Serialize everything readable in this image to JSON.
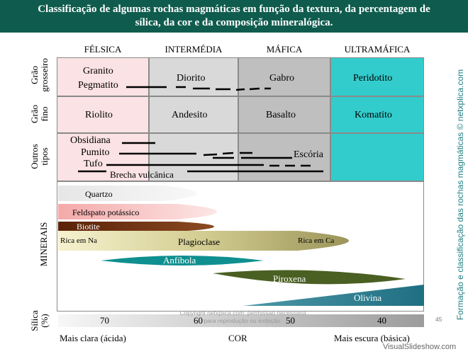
{
  "title": {
    "line1": "Classificação de algumas rochas magmáticas em função da textura, da percentagem de",
    "line2": "sílica, da cor e da composição mineralógica."
  },
  "side_text": "Formação e classificação das rochas magmáticas © netxplica.com",
  "columns": [
    "FÉLSICA",
    "INTERMÉDIA",
    "MÁFICA",
    "ULTRAMÁFICA"
  ],
  "row_labels": {
    "coarse": [
      "Grão",
      "grosseiro"
    ],
    "fine": [
      "Grão",
      "fino"
    ],
    "others": [
      "Outros",
      "tipos"
    ],
    "minerals": "MINERAIS",
    "silica": [
      "Sílica",
      "(%)"
    ]
  },
  "rocks": {
    "granito": "Granito",
    "pegmatito": "Pegmatito",
    "diorito": "Diorito",
    "gabro": "Gabro",
    "peridotito": "Peridotito",
    "riolito": "Riolito",
    "andesito": "Andesito",
    "basalto": "Basalto",
    "komatito": "Komatito",
    "obsidiana": "Obsidiana",
    "pumito": "Pumito",
    "tufo": "Tufo",
    "escoria": "Escória",
    "brecha": "Brecha vulcânica"
  },
  "minerals": {
    "quartzo": "Quartzo",
    "feldspato": "Feldspato potássico",
    "biotite": "Biotite",
    "plagioclase": "Plagioclase",
    "rica_na": "Rica em Na",
    "rica_ca": "Rica em Ca",
    "anfibola": "Anfíbola",
    "piroxena": "Piroxena",
    "olivina": "Olivina"
  },
  "silica_scale": [
    "70",
    "60",
    "50",
    "40"
  ],
  "color_axis": {
    "left": "Mais clara (ácida)",
    "center": "COR",
    "right": "Mais escura (básica)"
  },
  "copyright": "Copyright netxplica.com: permissão necessária para reprodução ou exibição.",
  "page_number": "45",
  "watermark": "VisualSlideshow.com",
  "colors": {
    "title_bg": "#0f5c4e",
    "felsic": "#fbe2e4",
    "intermediate": "#d9d9d9",
    "mafic": "#bfbfbf",
    "ultramafic": "#33cccc",
    "quartzo": "#eeeeee",
    "feldspato": "#f8c4c4",
    "biotite": "#6b2d0e",
    "plagioclase": "#d9d39d",
    "anfibola": "#0f8f8f",
    "piroxena": "#4a5f22",
    "olivina": "#2e7f90"
  }
}
